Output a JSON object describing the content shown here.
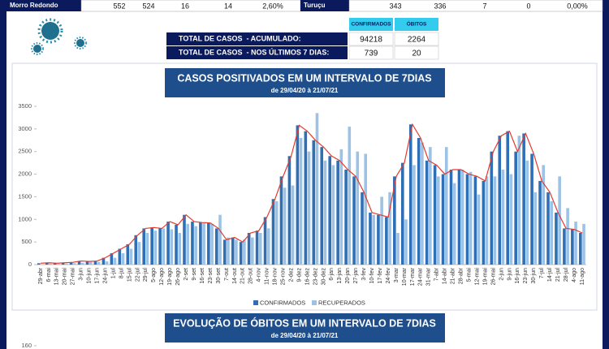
{
  "municipalities": [
    {
      "name": "Morro Redondo",
      "values": [
        "552",
        "524",
        "16",
        "14",
        "2,60%"
      ]
    },
    {
      "name": "Turuçu",
      "values": [
        "343",
        "336",
        "7",
        "0",
        "0,00%"
      ]
    }
  ],
  "summary": {
    "headers": [
      "CONFIRMADOS",
      "ÓBITOS"
    ],
    "rows": [
      {
        "label": "TOTAL DE CASOS  - ACUMULADO:",
        "values": [
          "94218",
          "2264"
        ]
      },
      {
        "label": "TOTAL DE CASOS  - NOS ÚLTIMOS 7 DIAS:",
        "values": [
          "739",
          "20"
        ]
      }
    ]
  },
  "chart_data": [
    {
      "type": "bar",
      "title": "CASOS POSITIVADOS EM UM INTERVALO DE 7DIAS",
      "subtitle": "de 29/04/20 à 21/07/21",
      "categories": [
        "29-abr",
        "6-mai",
        "13-mai",
        "20-mai",
        "27-mai",
        "3-jun",
        "10-jun",
        "17-jun",
        "24-jun",
        "1-jul",
        "8-jul",
        "15-jul",
        "22-jul",
        "29-jul",
        "5-ago",
        "12-ago",
        "19-ago",
        "26-ago",
        "2-set",
        "9-set",
        "16-set",
        "23-set",
        "30-set",
        "7-out",
        "14-out",
        "21-out",
        "28-out",
        "4-nov",
        "11-nov",
        "18-nov",
        "25-nov",
        "2-dez",
        "9-dez",
        "16-dez",
        "23-dez",
        "30-dez",
        "6-jan",
        "13-jan",
        "20-jan",
        "27-jan",
        "3-fev",
        "10-fev",
        "17-fev",
        "24-fev",
        "3-mar",
        "10-mar",
        "17-mar",
        "24-mar",
        "31-mar",
        "7-abr",
        "14-abr",
        "21-abr",
        "28-abr",
        "5-mai",
        "12-mai",
        "19-mai",
        "26-mai",
        "2-jun",
        "9-jun",
        "16-jun",
        "23-jun",
        "30-jun",
        "7-jul",
        "14-jul",
        "21-jul",
        "28-jul",
        "4-ago",
        "11-ago"
      ],
      "series": [
        {
          "name": "CONFIRMADOS",
          "color": "#2e6fb5",
          "values": [
            30,
            40,
            30,
            40,
            50,
            80,
            70,
            80,
            150,
            250,
            350,
            450,
            650,
            800,
            820,
            800,
            950,
            880,
            1100,
            950,
            930,
            920,
            800,
            550,
            600,
            500,
            700,
            750,
            1050,
            1450,
            1950,
            2400,
            3080,
            2950,
            2750,
            2600,
            2400,
            2300,
            2100,
            1950,
            1600,
            1150,
            1100,
            1050,
            1950,
            2250,
            3100,
            2800,
            2300,
            2200,
            2000,
            2100,
            2100,
            2000,
            1950,
            1850,
            2500,
            2850,
            2950,
            2500,
            2900,
            2450,
            1850,
            1600,
            1150,
            800,
            780,
            700
          ]
        },
        {
          "name": "RECUPERADOS",
          "color": "#9cc3e5",
          "values": [
            0,
            20,
            20,
            20,
            30,
            40,
            60,
            60,
            70,
            150,
            250,
            350,
            500,
            700,
            750,
            800,
            780,
            700,
            900,
            850,
            920,
            900,
            1100,
            600,
            550,
            550,
            600,
            700,
            800,
            1400,
            1700,
            1750,
            2800,
            2500,
            3350,
            2300,
            2200,
            2550,
            3050,
            2500,
            2450,
            1100,
            1500,
            1600,
            700,
            1000,
            2200,
            2700,
            2600,
            1950,
            2600,
            1800,
            2100,
            2050,
            1550,
            1950,
            1950,
            2100,
            2000,
            2850,
            2300,
            1600,
            2200,
            1400,
            1950,
            1250,
            950,
            900
          ]
        }
      ],
      "trend_color": "#e03c31",
      "ylim": [
        0,
        3500
      ],
      "yticks": [
        0,
        500,
        1000,
        1500,
        2000,
        2500,
        3000,
        3500
      ]
    },
    {
      "type": "bar",
      "title": "EVOLUÇÃO DE ÓBITOS EM UM INTERVALO DE 7DIAS",
      "subtitle": "de 29/04/20 à 21/07/21",
      "ylim": [
        0,
        160
      ],
      "yticks": [
        160
      ]
    }
  ]
}
